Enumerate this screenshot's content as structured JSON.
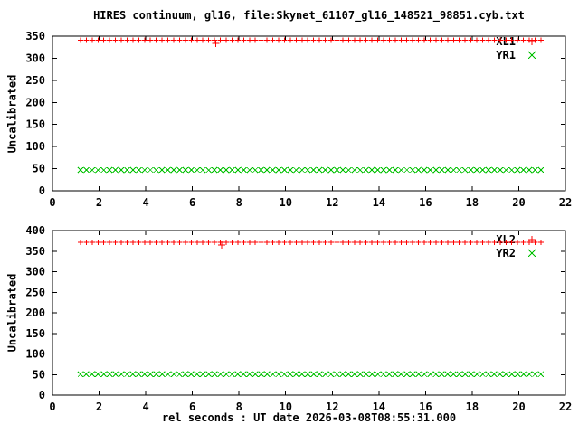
{
  "window": {
    "title": "HIRES continuum, gl16, file:Skynet_61107_gl16_148521_98851.cyb.txt",
    "background": "#ffffff"
  },
  "colors": {
    "series_red": "#ff0000",
    "series_green": "#00c000",
    "axis": "#000000",
    "text": "#000000"
  },
  "xlabel": "rel seconds : UT date 2026-03-08T08:55:31.000",
  "chart_data": [
    {
      "type": "scatter",
      "panel": "top",
      "ylabel": "Uncalibrated",
      "xlim": [
        0,
        22
      ],
      "ylim": [
        0,
        350
      ],
      "xticks": [
        0,
        2,
        4,
        6,
        8,
        10,
        12,
        14,
        16,
        18,
        20,
        22
      ],
      "yticks": [
        0,
        50,
        100,
        150,
        200,
        250,
        300,
        350
      ],
      "grid": false,
      "legend_position": "inside-top-right",
      "series": [
        {
          "name": "XL1",
          "marker": "plus",
          "color": "#ff0000",
          "x_start": 1.2,
          "x_step": 0.25,
          "n_points": 80,
          "y_constant": 341,
          "extra_points": [
            {
              "x": 7.0,
              "y": 334
            }
          ]
        },
        {
          "name": "YR1",
          "marker": "cross",
          "color": "#00c000",
          "x_start": 1.2,
          "x_step": 0.25,
          "n_points": 80,
          "y_constant": 47,
          "extra_points": []
        }
      ]
    },
    {
      "type": "scatter",
      "panel": "bottom",
      "ylabel": "Uncalibrated",
      "xlim": [
        0,
        22
      ],
      "ylim": [
        0,
        400
      ],
      "xticks": [
        0,
        2,
        4,
        6,
        8,
        10,
        12,
        14,
        16,
        18,
        20,
        22
      ],
      "yticks": [
        0,
        50,
        100,
        150,
        200,
        250,
        300,
        350,
        400
      ],
      "grid": false,
      "legend_position": "inside-top-right",
      "series": [
        {
          "name": "XL2",
          "marker": "plus",
          "color": "#ff0000",
          "x_start": 1.2,
          "x_step": 0.25,
          "n_points": 80,
          "y_constant": 371,
          "extra_points": [
            {
              "x": 7.25,
              "y": 365
            }
          ]
        },
        {
          "name": "YR2",
          "marker": "cross",
          "color": "#00c000",
          "x_start": 1.2,
          "x_step": 0.25,
          "n_points": 80,
          "y_constant": 51,
          "extra_points": []
        }
      ]
    }
  ]
}
